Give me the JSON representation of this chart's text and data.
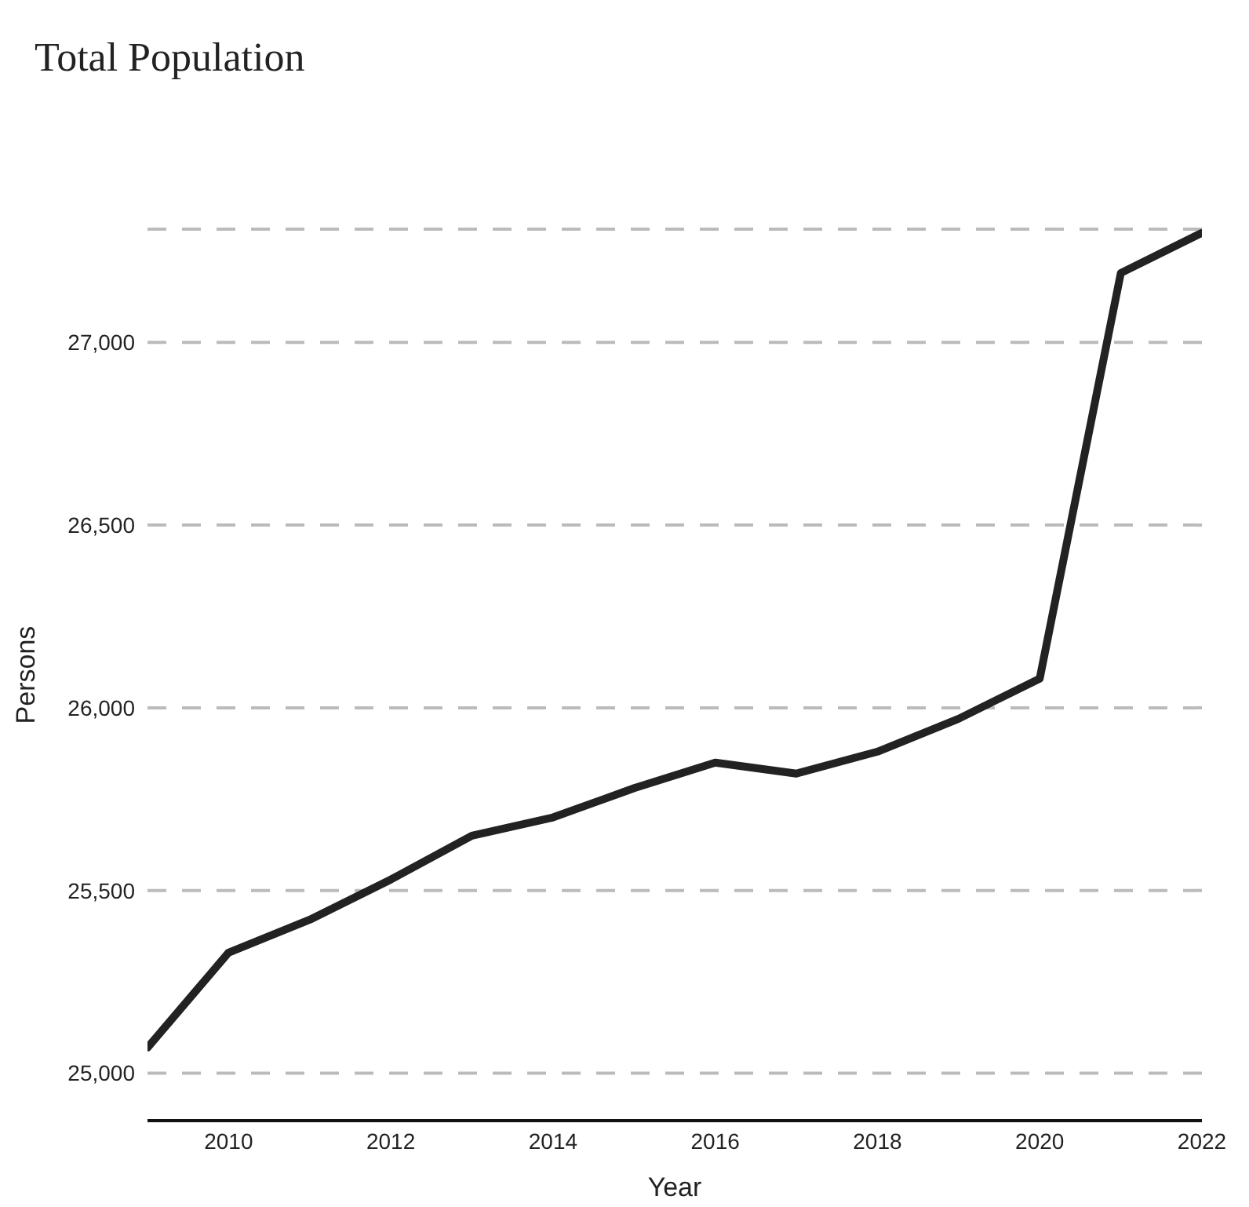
{
  "chart_data": {
    "type": "line",
    "title": "Total Population",
    "xlabel": "Year",
    "ylabel": "Persons",
    "x": [
      2009,
      2010,
      2011,
      2012,
      2013,
      2014,
      2015,
      2016,
      2017,
      2018,
      2019,
      2020,
      2021,
      2022
    ],
    "series": [
      {
        "color": "#222222",
        "values": [
          25070,
          25330,
          25420,
          25530,
          25650,
          25700,
          25780,
          25850,
          25820,
          25880,
          25970,
          26080,
          27190,
          27300
        ]
      }
    ],
    "xlim": [
      2009,
      2022
    ],
    "xticks": [
      2010,
      2012,
      2014,
      2016,
      2018,
      2020,
      2022
    ],
    "ylim": [
      24870,
      27310
    ],
    "yticks": [
      {
        "value": 25000,
        "label": "25,000"
      },
      {
        "value": 25500,
        "label": "25,500"
      },
      {
        "value": 26000,
        "label": "26,000"
      },
      {
        "value": 26500,
        "label": "26,500"
      },
      {
        "value": 27000,
        "label": "27,000"
      }
    ],
    "grid": "y",
    "legend": false,
    "marker": "none",
    "line_style": "solid"
  }
}
